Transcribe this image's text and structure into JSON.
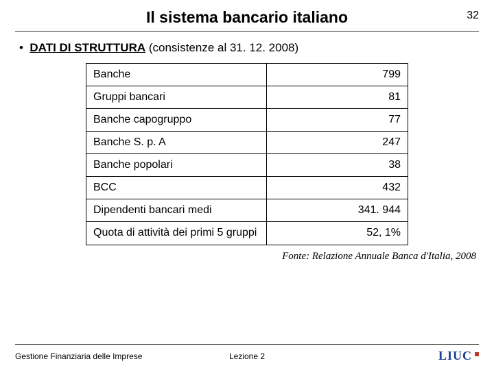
{
  "page_number": "32",
  "title": "Il sistema bancario italiano",
  "bullet_lead": "DATI DI STRUTTURA",
  "bullet_rest": " (consistenze al 31. 12. 2008)",
  "table": {
    "rows": [
      {
        "label": "Banche",
        "value": "799"
      },
      {
        "label": "Gruppi bancari",
        "value": "81"
      },
      {
        "label": "Banche capogruppo",
        "value": "77"
      },
      {
        "label": "Banche S. p. A",
        "value": "247"
      },
      {
        "label": "Banche popolari",
        "value": "38"
      },
      {
        "label": "BCC",
        "value": "432"
      },
      {
        "label": "Dipendenti bancari medi",
        "value": "341. 944"
      },
      {
        "label": "Quota di attività dei primi 5 gruppi",
        "value": "52, 1%"
      }
    ]
  },
  "source": "Fonte: Relazione Annuale Banca d'Italia, 2008",
  "footer_left": "Gestione Finanziaria delle Imprese",
  "footer_center": "Lezione 2",
  "logo_text": "LIUC",
  "colors": {
    "logo_blue": "#1a3e8c",
    "border": "#000000"
  }
}
